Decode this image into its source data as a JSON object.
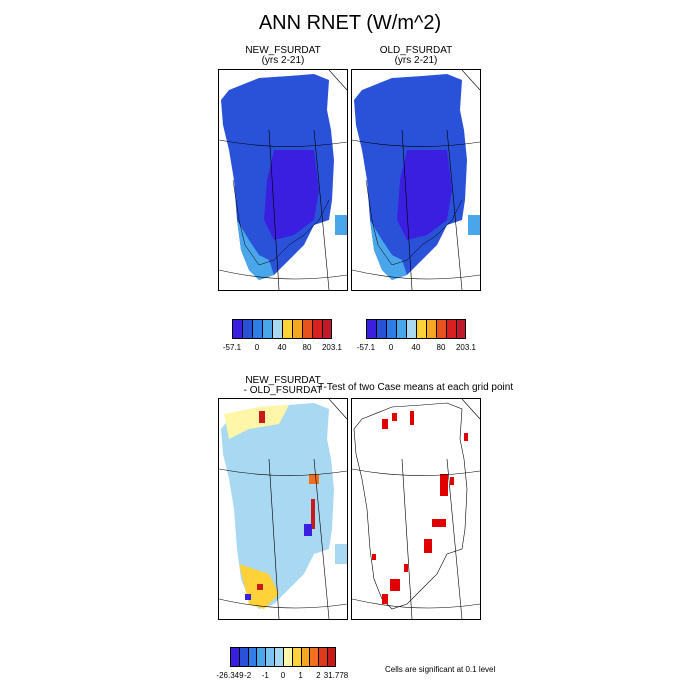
{
  "title": "ANN RNET (W/m^2)",
  "panels": {
    "new": {
      "title": "NEW_FSURDAT",
      "subtitle": "(yrs 2-21)"
    },
    "old": {
      "title": "OLD_FSURDAT",
      "subtitle": "(yrs 2-21)"
    },
    "diff": {
      "title_line1": "NEW_FSURDAT",
      "title_line2": "- OLD_FSURDAT"
    },
    "ttest": {
      "title": "T-Test of two Case means at each grid point"
    }
  },
  "colorbar_top": {
    "colors": [
      "#3b1fe0",
      "#2a52d8",
      "#2f7de6",
      "#4aa6ea",
      "#a9d8f2",
      "#ffd23a",
      "#f5a623",
      "#e8521c",
      "#d91f1f",
      "#c01a2b"
    ],
    "labels": [
      "-57.1",
      "0",
      "40",
      "80",
      "203.1"
    ]
  },
  "colorbar_bottom": {
    "colors": [
      "#3b1fe0",
      "#2a52d8",
      "#2f7de6",
      "#4aa6ea",
      "#7cc4f0",
      "#a9d8f2",
      "#fff6a8",
      "#ffd23a",
      "#f5a623",
      "#f07020",
      "#e03a1c",
      "#c81a1a"
    ],
    "labels": [
      "-26.349",
      "-2",
      "-1",
      "0",
      "1",
      "2",
      "31.778"
    ]
  },
  "note": "Cells are significant at 0.1 level",
  "colors": {
    "ocean_blue": "#4aa6ea",
    "dark_blue": "#3b1fe0",
    "mid_blue": "#2a52d8",
    "sig_red": "#e00000"
  }
}
